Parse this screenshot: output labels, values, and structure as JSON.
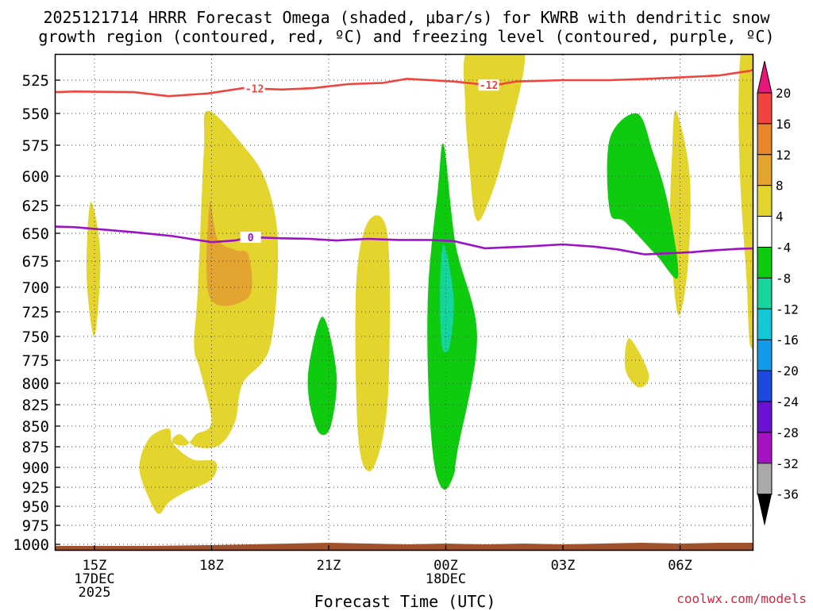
{
  "chart_data": {
    "type": "heatmap",
    "title_line1": "2025121714 HRRR Forecast Omega (shaded, μbar/s) for KWRB with dendritic snow",
    "title_line2": "growth region (contoured, red, ºC) and freezing level (contoured, purple, ºC)",
    "xlabel": "Forecast Time (UTC)",
    "ylabel": "",
    "credit": "coolwx.com/models",
    "x_ticks": [
      {
        "hour": 15,
        "lines": [
          "15Z",
          "17DEC",
          "2025"
        ]
      },
      {
        "hour": 18,
        "lines": [
          "18Z"
        ]
      },
      {
        "hour": 21,
        "lines": [
          "21Z"
        ]
      },
      {
        "hour": 24,
        "lines": [
          "00Z",
          "18DEC"
        ]
      },
      {
        "hour": 27,
        "lines": [
          "03Z"
        ]
      },
      {
        "hour": 30,
        "lines": [
          "06Z"
        ]
      }
    ],
    "xlim": [
      14,
      32
    ],
    "y_ticks": [
      525,
      550,
      575,
      600,
      625,
      650,
      675,
      700,
      725,
      750,
      775,
      800,
      825,
      850,
      875,
      900,
      925,
      950,
      975,
      1000
    ],
    "ylim_hpa": [
      1005,
      500
    ],
    "colorbar": {
      "labels": [
        "20",
        "16",
        "12",
        "8",
        "4",
        "-4",
        "-8",
        "-12",
        "-16",
        "-20",
        "-24",
        "-28",
        "-32",
        "-36"
      ],
      "colors": [
        "#f2443f",
        "#e8862b",
        "#e3a530",
        "#e3d52e",
        "#ffffff",
        "#0fcb0f",
        "#16d49a",
        "#12c8d6",
        "#139ae8",
        "#1c4ae0",
        "#6a12d4",
        "#a412c2",
        "#a9a9a9"
      ],
      "top_arrow_color": "#e8157a",
      "bottom_arrow_color": "#000000"
    },
    "contour_dendritic": {
      "label": "-12",
      "color": "#f2443f",
      "points": [
        [
          14,
          534
        ],
        [
          14.5,
          533.5
        ],
        [
          16,
          534
        ],
        [
          16.9,
          537
        ],
        [
          17.9,
          535
        ],
        [
          18.8,
          531
        ],
        [
          19.8,
          532
        ],
        [
          20.6,
          531
        ],
        [
          21.5,
          528
        ],
        [
          22.4,
          527
        ],
        [
          23,
          524
        ],
        [
          24.2,
          526
        ],
        [
          25.2,
          529
        ],
        [
          25.8,
          526
        ],
        [
          27,
          525
        ],
        [
          28.2,
          525
        ],
        [
          29.2,
          524
        ],
        [
          30.3,
          522.5
        ],
        [
          31,
          521.5
        ],
        [
          31.8,
          518
        ],
        [
          32,
          516
        ]
      ],
      "labels_at": [
        19.1,
        25.1
      ]
    },
    "contour_freezing": {
      "label": "0",
      "color": "#9c12c8",
      "points": [
        [
          14,
          644
        ],
        [
          14.5,
          644.5
        ],
        [
          15,
          646
        ],
        [
          16,
          649
        ],
        [
          17,
          652.5
        ],
        [
          18,
          658
        ],
        [
          18.6,
          656.5
        ],
        [
          19,
          653.5
        ],
        [
          19.8,
          654.5
        ],
        [
          20.5,
          655
        ],
        [
          21.2,
          656.5
        ],
        [
          22,
          655
        ],
        [
          22.8,
          656
        ],
        [
          23.6,
          656
        ],
        [
          24.2,
          657
        ],
        [
          25,
          663.5
        ],
        [
          26,
          662
        ],
        [
          27,
          660
        ],
        [
          27.8,
          662
        ],
        [
          28.4,
          664.5
        ],
        [
          29.1,
          669
        ],
        [
          30.3,
          667
        ],
        [
          30.8,
          665.5
        ],
        [
          31.5,
          664
        ],
        [
          32,
          663.5
        ]
      ],
      "label_at": 19.0
    },
    "omega_regions": [
      {
        "level": "4 to 8",
        "color": "#e3d52e",
        "points": [
          [
            14.9,
            622
          ],
          [
            15.15,
            670
          ],
          [
            15.0,
            750
          ],
          [
            14.8,
            690
          ]
        ]
      },
      {
        "level": "4 to 8",
        "color": "#e3d52e",
        "points": [
          [
            17.8,
            580
          ],
          [
            17.9,
            548
          ],
          [
            18.8,
            575
          ],
          [
            19.4,
            605
          ],
          [
            19.7,
            660
          ],
          [
            19.5,
            760
          ],
          [
            18.8,
            800
          ],
          [
            18.6,
            845
          ],
          [
            18.2,
            873
          ],
          [
            17.6,
            875
          ],
          [
            17.2,
            860
          ],
          [
            17.0,
            870
          ],
          [
            17.5,
            890
          ],
          [
            18.1,
            893
          ],
          [
            18.0,
            915
          ],
          [
            17.3,
            932
          ],
          [
            16.9,
            945
          ],
          [
            16.65,
            960
          ],
          [
            16.4,
            940
          ],
          [
            16.15,
            900
          ],
          [
            16.4,
            865
          ],
          [
            16.9,
            853
          ],
          [
            17.0,
            870
          ],
          [
            17.35,
            873
          ],
          [
            17.6,
            860
          ],
          [
            18.0,
            845
          ],
          [
            17.7,
            785
          ],
          [
            17.55,
            760
          ],
          [
            17.65,
            700
          ]
        ]
      },
      {
        "level": "8 to 12",
        "color": "#e3a530",
        "points": [
          [
            17.95,
            622
          ],
          [
            18.15,
            655
          ],
          [
            18.6,
            665
          ],
          [
            18.95,
            670
          ],
          [
            18.95,
            710
          ],
          [
            17.95,
            710
          ]
        ]
      },
      {
        "level": "4 to 8",
        "color": "#e3d52e",
        "points": [
          [
            22.0,
            640
          ],
          [
            22.5,
            650
          ],
          [
            22.55,
            780
          ],
          [
            22.4,
            860
          ],
          [
            22.05,
            905
          ],
          [
            21.75,
            860
          ],
          [
            21.7,
            700
          ]
        ]
      },
      {
        "level": "4 to 8",
        "color": "#e3d52e",
        "points": [
          [
            24.6,
            500
          ],
          [
            26.0,
            500
          ],
          [
            25.5,
            580
          ],
          [
            25.0,
            630
          ],
          [
            24.75,
            635
          ],
          [
            24.6,
            590
          ],
          [
            24.5,
            545
          ]
        ]
      },
      {
        "level": "4 to 8",
        "color": "#e3d52e",
        "points": [
          [
            28.7,
            752
          ],
          [
            29.2,
            790
          ],
          [
            28.95,
            805
          ],
          [
            28.6,
            785
          ]
        ]
      },
      {
        "level": "4 to 8",
        "color": "#e3d52e",
        "points": [
          [
            29.9,
            548
          ],
          [
            30.25,
            600
          ],
          [
            30.2,
            680
          ],
          [
            29.95,
            728
          ],
          [
            29.75,
            650
          ],
          [
            29.8,
            580
          ]
        ]
      },
      {
        "level": "4 to 8",
        "color": "#e3d52e",
        "points": [
          [
            31.6,
            500
          ],
          [
            32,
            500
          ],
          [
            32,
            720
          ],
          [
            31.8,
            760
          ],
          [
            31.7,
            690
          ],
          [
            31.55,
            610
          ],
          [
            31.5,
            540
          ]
        ]
      },
      {
        "level": "-8 to -4",
        "color": "#0fcb0f",
        "points": [
          [
            20.85,
            730
          ],
          [
            21.2,
            790
          ],
          [
            21.05,
            850
          ],
          [
            20.75,
            858
          ],
          [
            20.5,
            820
          ],
          [
            20.5,
            780
          ]
        ]
      },
      {
        "level": "-8 to -4",
        "color": "#0fcb0f",
        "points": [
          [
            23.95,
            575
          ],
          [
            24.25,
            660
          ],
          [
            24.8,
            750
          ],
          [
            24.3,
            880
          ],
          [
            24.2,
            910
          ],
          [
            23.95,
            928
          ],
          [
            23.7,
            895
          ],
          [
            23.55,
            800
          ],
          [
            23.55,
            700
          ],
          [
            23.8,
            610
          ]
        ]
      },
      {
        "level": "-12 to -8",
        "color": "#16d49a",
        "points": [
          [
            23.95,
            660
          ],
          [
            24.2,
            710
          ],
          [
            24.1,
            760
          ],
          [
            23.9,
            760
          ],
          [
            23.85,
            700
          ]
        ]
      },
      {
        "level": "-8 to -4",
        "color": "#0fcb0f",
        "points": [
          [
            28.2,
            570
          ],
          [
            28.9,
            550
          ],
          [
            29.3,
            580
          ],
          [
            29.7,
            625
          ],
          [
            29.95,
            690
          ],
          [
            29.4,
            670
          ],
          [
            28.6,
            640
          ],
          [
            28.2,
            630
          ]
        ]
      }
    ]
  }
}
